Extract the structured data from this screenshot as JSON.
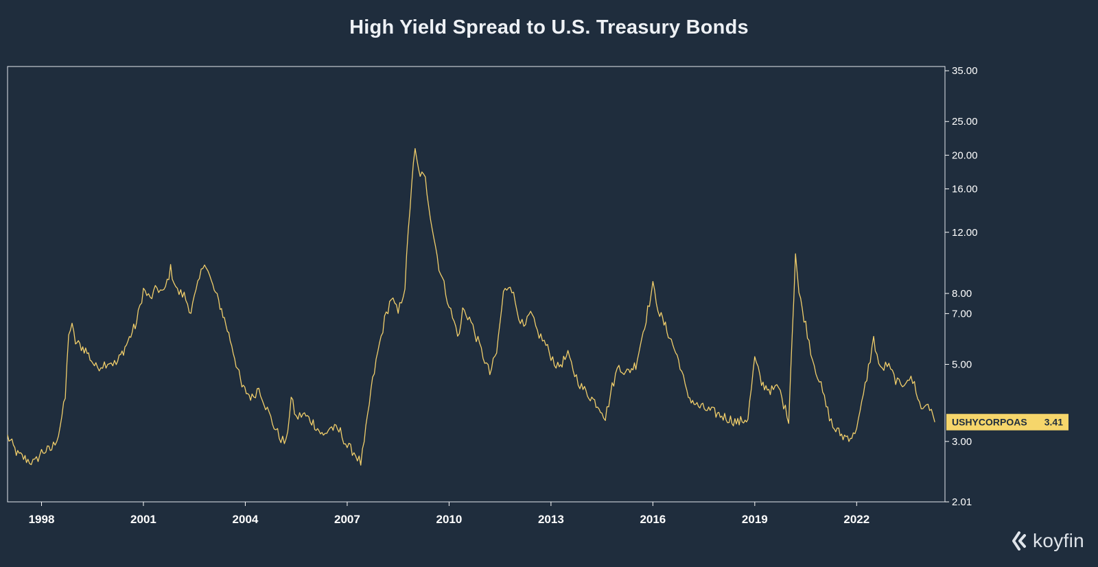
{
  "chart_data": {
    "type": "line",
    "title": "High Yield Spread to U.S. Treasury Bonds",
    "xlabel": "",
    "ylabel": "",
    "y_scale": "log",
    "ylim": [
      2.01,
      36
    ],
    "xlim": [
      1997.0,
      2024.6
    ],
    "x_ticks": [
      1998,
      2001,
      2004,
      2007,
      2010,
      2013,
      2016,
      2019,
      2022
    ],
    "x_tick_labels": [
      "1998",
      "2001",
      "2004",
      "2007",
      "2010",
      "2013",
      "2016",
      "2019",
      "2022"
    ],
    "y_ticks": [
      35,
      25,
      20,
      16,
      12,
      8,
      7,
      5,
      3,
      2.01
    ],
    "y_tick_labels": [
      "35.00",
      "25.00",
      "20.00",
      "16.00",
      "12.00",
      "8.00",
      "7.00",
      "5.00",
      "3.00",
      "2.01"
    ],
    "grid": false,
    "colors": {
      "background": "#1f2d3d",
      "series": "#f2cf6b",
      "frame": "#e6e9ee",
      "text": "#ffffff",
      "last_value_badge": "#f6d66b",
      "last_value_text": "#1f2d3d"
    },
    "series": [
      {
        "name": "USHYCORPOAS",
        "last_value": "3.41",
        "points": [
          [
            1997.0,
            3.1
          ],
          [
            1997.3,
            2.75
          ],
          [
            1997.6,
            2.65
          ],
          [
            1997.8,
            2.6
          ],
          [
            1998.0,
            2.8
          ],
          [
            1998.3,
            2.85
          ],
          [
            1998.5,
            3.15
          ],
          [
            1998.7,
            4.0
          ],
          [
            1998.8,
            6.2
          ],
          [
            1998.9,
            6.4
          ],
          [
            1999.0,
            5.8
          ],
          [
            1999.3,
            5.5
          ],
          [
            1999.6,
            4.9
          ],
          [
            1999.8,
            5.0
          ],
          [
            2000.0,
            5.1
          ],
          [
            2000.2,
            5.0
          ],
          [
            2000.5,
            5.7
          ],
          [
            2000.8,
            6.6
          ],
          [
            2001.0,
            8.2
          ],
          [
            2001.2,
            7.7
          ],
          [
            2001.4,
            8.3
          ],
          [
            2001.6,
            8.0
          ],
          [
            2001.8,
            9.4
          ],
          [
            2002.0,
            8.1
          ],
          [
            2002.2,
            7.9
          ],
          [
            2002.4,
            7.1
          ],
          [
            2002.6,
            8.4
          ],
          [
            2002.8,
            10.0
          ],
          [
            2003.0,
            8.6
          ],
          [
            2003.3,
            7.2
          ],
          [
            2003.6,
            5.7
          ],
          [
            2003.9,
            4.3
          ],
          [
            2004.2,
            4.0
          ],
          [
            2004.4,
            4.3
          ],
          [
            2004.6,
            3.8
          ],
          [
            2004.8,
            3.4
          ],
          [
            2005.0,
            3.1
          ],
          [
            2005.2,
            2.95
          ],
          [
            2005.35,
            4.0
          ],
          [
            2005.5,
            3.5
          ],
          [
            2005.7,
            3.6
          ],
          [
            2006.0,
            3.4
          ],
          [
            2006.3,
            3.1
          ],
          [
            2006.5,
            3.3
          ],
          [
            2006.8,
            3.2
          ],
          [
            2007.0,
            2.9
          ],
          [
            2007.2,
            2.8
          ],
          [
            2007.4,
            2.6
          ],
          [
            2007.5,
            2.95
          ],
          [
            2007.7,
            4.2
          ],
          [
            2007.9,
            5.4
          ],
          [
            2008.1,
            6.7
          ],
          [
            2008.3,
            7.8
          ],
          [
            2008.5,
            7.0
          ],
          [
            2008.7,
            8.4
          ],
          [
            2008.8,
            12.0
          ],
          [
            2008.9,
            16.8
          ],
          [
            2009.0,
            20.5
          ],
          [
            2009.1,
            18.0
          ],
          [
            2009.3,
            17.0
          ],
          [
            2009.5,
            12.5
          ],
          [
            2009.7,
            9.6
          ],
          [
            2009.9,
            8.1
          ],
          [
            2010.1,
            6.8
          ],
          [
            2010.3,
            6.0
          ],
          [
            2010.4,
            7.2
          ],
          [
            2010.6,
            6.8
          ],
          [
            2010.8,
            6.0
          ],
          [
            2011.0,
            5.3
          ],
          [
            2011.2,
            4.7
          ],
          [
            2011.4,
            5.4
          ],
          [
            2011.6,
            8.0
          ],
          [
            2011.8,
            8.6
          ],
          [
            2012.0,
            7.2
          ],
          [
            2012.2,
            6.3
          ],
          [
            2012.4,
            7.0
          ],
          [
            2012.6,
            6.2
          ],
          [
            2012.8,
            5.8
          ],
          [
            2013.0,
            5.3
          ],
          [
            2013.2,
            4.9
          ],
          [
            2013.5,
            5.3
          ],
          [
            2013.7,
            4.7
          ],
          [
            2013.9,
            4.3
          ],
          [
            2014.2,
            4.0
          ],
          [
            2014.5,
            3.7
          ],
          [
            2014.6,
            3.5
          ],
          [
            2014.8,
            4.3
          ],
          [
            2015.0,
            5.0
          ],
          [
            2015.2,
            4.7
          ],
          [
            2015.5,
            5.0
          ],
          [
            2015.8,
            6.8
          ],
          [
            2016.0,
            8.4
          ],
          [
            2016.2,
            7.0
          ],
          [
            2016.5,
            6.0
          ],
          [
            2016.8,
            5.0
          ],
          [
            2017.0,
            4.1
          ],
          [
            2017.3,
            3.8
          ],
          [
            2017.6,
            3.7
          ],
          [
            2017.9,
            3.6
          ],
          [
            2018.2,
            3.5
          ],
          [
            2018.5,
            3.4
          ],
          [
            2018.8,
            3.5
          ],
          [
            2019.0,
            5.2
          ],
          [
            2019.2,
            4.4
          ],
          [
            2019.5,
            4.2
          ],
          [
            2019.7,
            4.3
          ],
          [
            2019.9,
            3.7
          ],
          [
            2020.0,
            3.5
          ],
          [
            2020.2,
            10.5
          ],
          [
            2020.3,
            8.0
          ],
          [
            2020.5,
            6.5
          ],
          [
            2020.7,
            5.2
          ],
          [
            2020.9,
            4.5
          ],
          [
            2021.1,
            3.8
          ],
          [
            2021.3,
            3.3
          ],
          [
            2021.6,
            3.1
          ],
          [
            2021.9,
            3.1
          ],
          [
            2022.1,
            3.6
          ],
          [
            2022.3,
            4.6
          ],
          [
            2022.5,
            5.9
          ],
          [
            2022.7,
            4.8
          ],
          [
            2022.9,
            5.0
          ],
          [
            2023.1,
            4.6
          ],
          [
            2023.3,
            4.3
          ],
          [
            2023.5,
            4.6
          ],
          [
            2023.7,
            4.4
          ],
          [
            2023.9,
            3.7
          ],
          [
            2024.1,
            3.9
          ],
          [
            2024.2,
            3.6
          ],
          [
            2024.3,
            3.41
          ]
        ]
      }
    ]
  },
  "brand": {
    "wordmark": "koyfin",
    "icon": "koyfin-logo-icon"
  }
}
